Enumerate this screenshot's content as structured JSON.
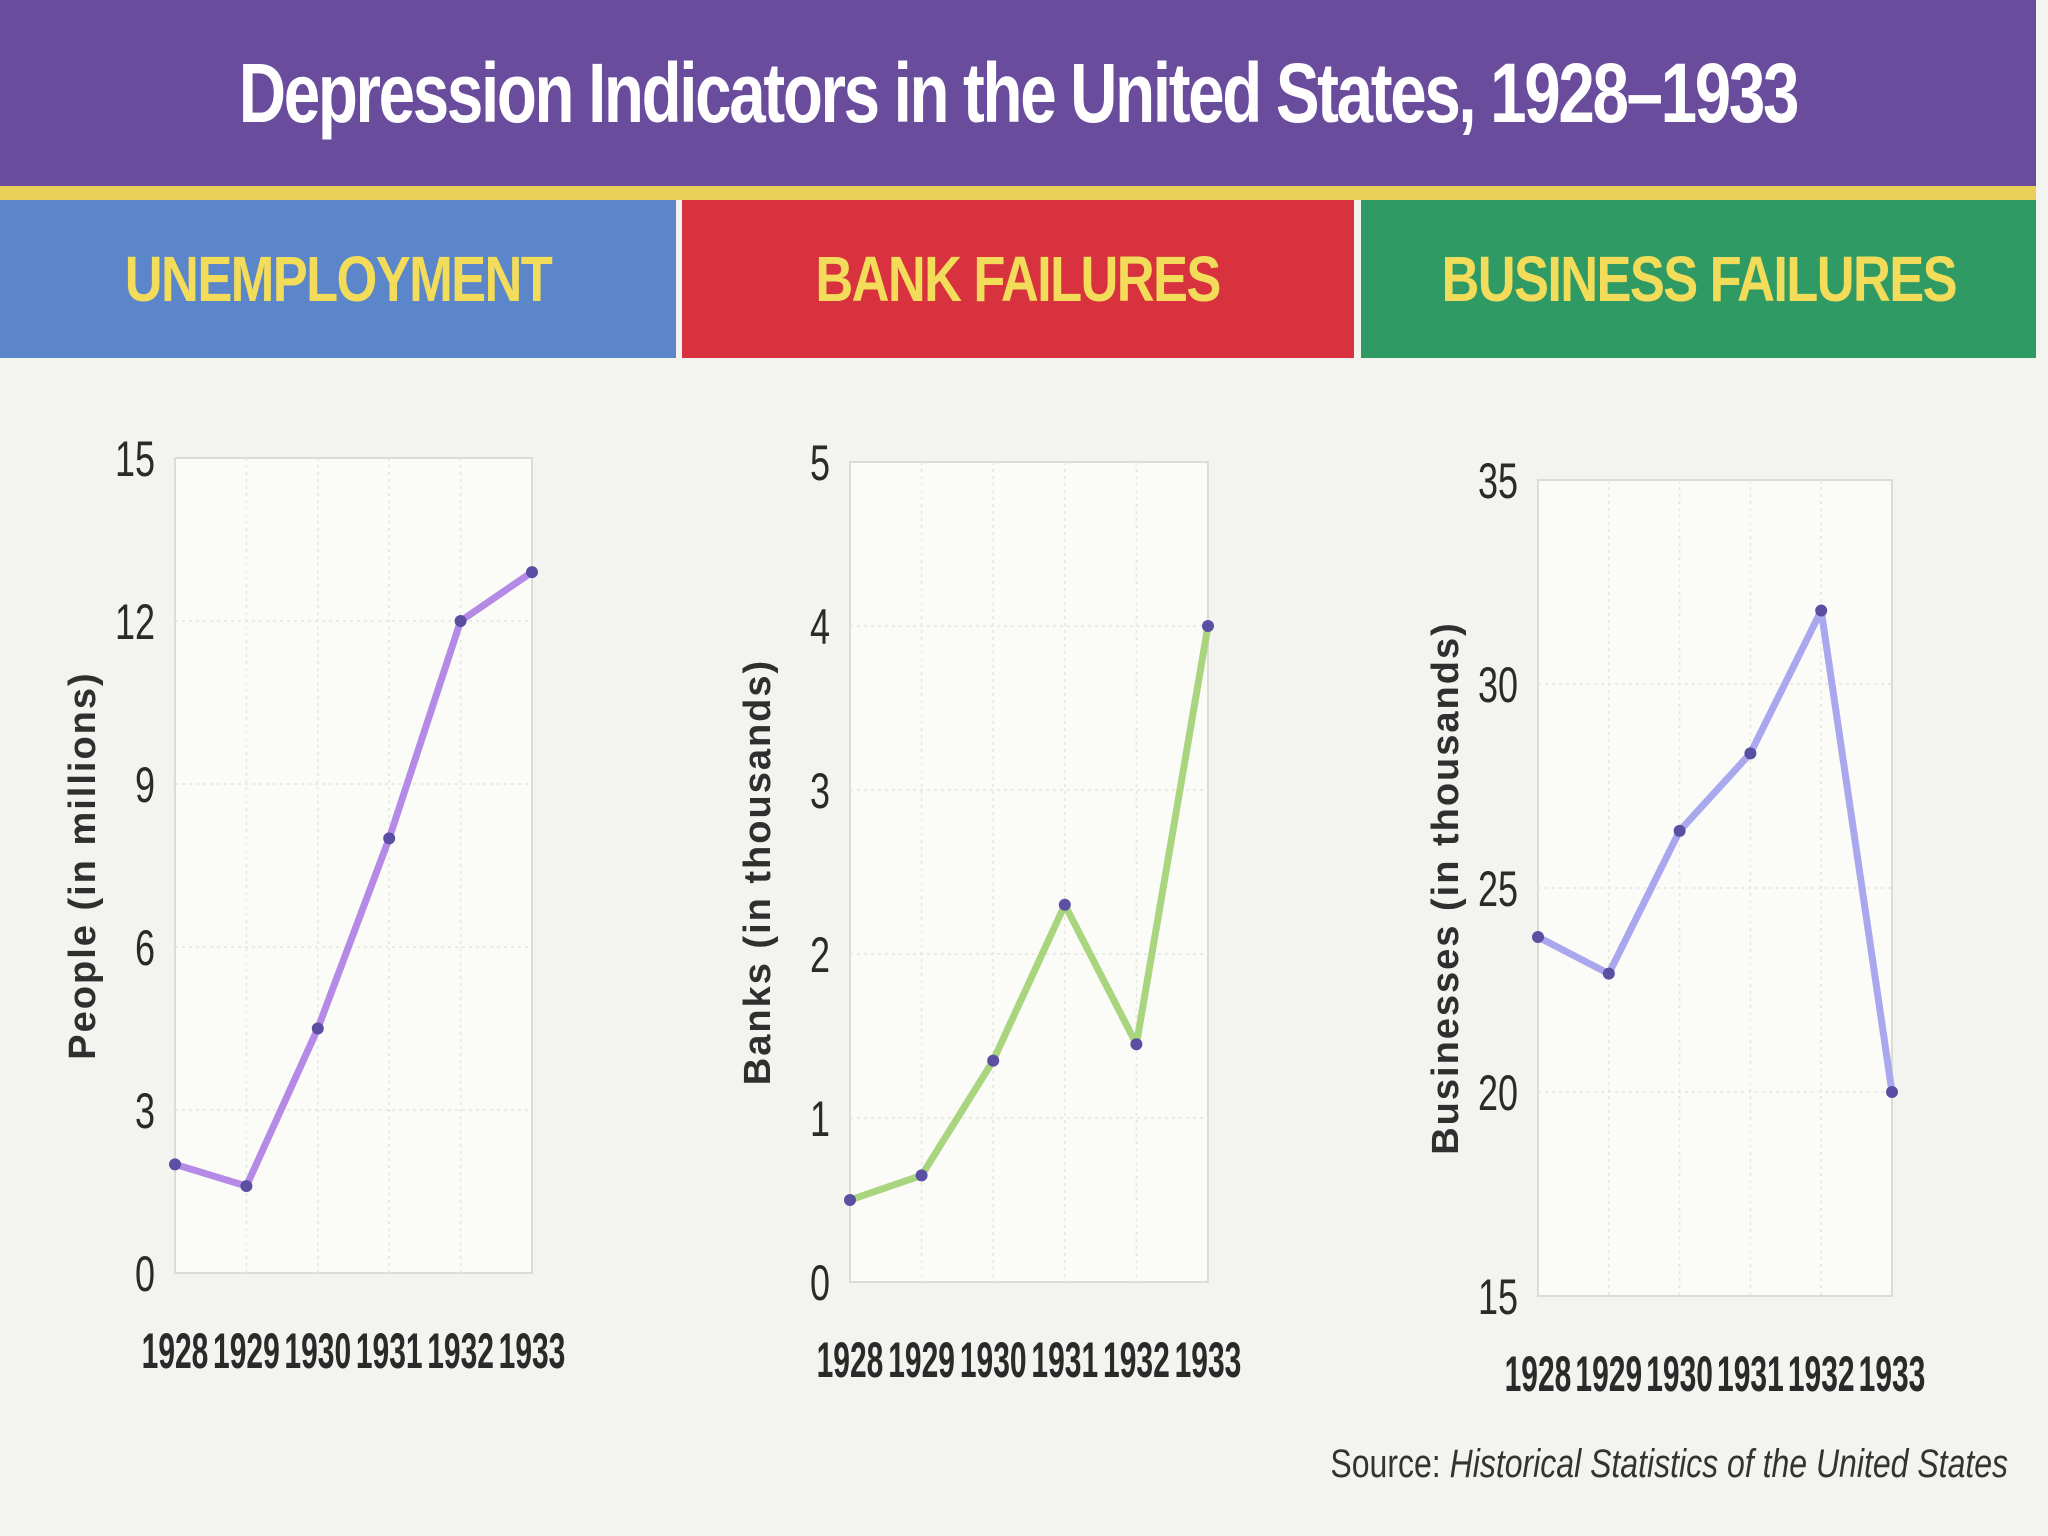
{
  "title": "Depression Indicators in the United States, 1928–1933",
  "source": {
    "label": "Source:",
    "title": "Historical Statistics of the United States"
  },
  "colors": {
    "title_bar": "#6a4c9c",
    "stripe": "#ead05a",
    "header_text": "#f2dc5a",
    "unemployment_header": "#5b86c9",
    "bank_header": "#d7323d",
    "business_header": "#2f9a64",
    "unemployment_line": "#b58ae6",
    "bank_line": "#a9d57e",
    "business_line": "#a9a8ee"
  },
  "chart_data": [
    {
      "type": "line",
      "title": "UNEMPLOYMENT",
      "xlabel": "",
      "ylabel": "People (in millions)",
      "categories": [
        "1928",
        "1929",
        "1930",
        "1931",
        "1932",
        "1933"
      ],
      "values": [
        2.0,
        1.6,
        4.5,
        8.0,
        12.0,
        12.9
      ],
      "ylim": [
        0,
        15
      ],
      "yticks": [
        "0",
        "3",
        "6",
        "9",
        "12",
        "15"
      ],
      "grid": true
    },
    {
      "type": "line",
      "title": "BANK FAILURES",
      "xlabel": "",
      "ylabel": "Banks (in thousands)",
      "categories": [
        "1928",
        "1929",
        "1930",
        "1931",
        "1932",
        "1933"
      ],
      "values": [
        0.5,
        0.65,
        1.35,
        2.3,
        1.45,
        4.0
      ],
      "ylim": [
        0,
        5
      ],
      "yticks": [
        "0",
        "1",
        "2",
        "3",
        "4",
        "5"
      ],
      "grid": true
    },
    {
      "type": "line",
      "title": "BUSINESS FAILURES",
      "xlabel": "",
      "ylabel": "Businesses (in thousands)",
      "categories": [
        "1928",
        "1929",
        "1930",
        "1931",
        "1932",
        "1933"
      ],
      "values": [
        23.8,
        22.9,
        26.4,
        28.3,
        31.8,
        20.0
      ],
      "ylim": [
        15,
        35
      ],
      "yticks": [
        "15",
        "20",
        "25",
        "30",
        "35"
      ],
      "grid": true
    }
  ]
}
